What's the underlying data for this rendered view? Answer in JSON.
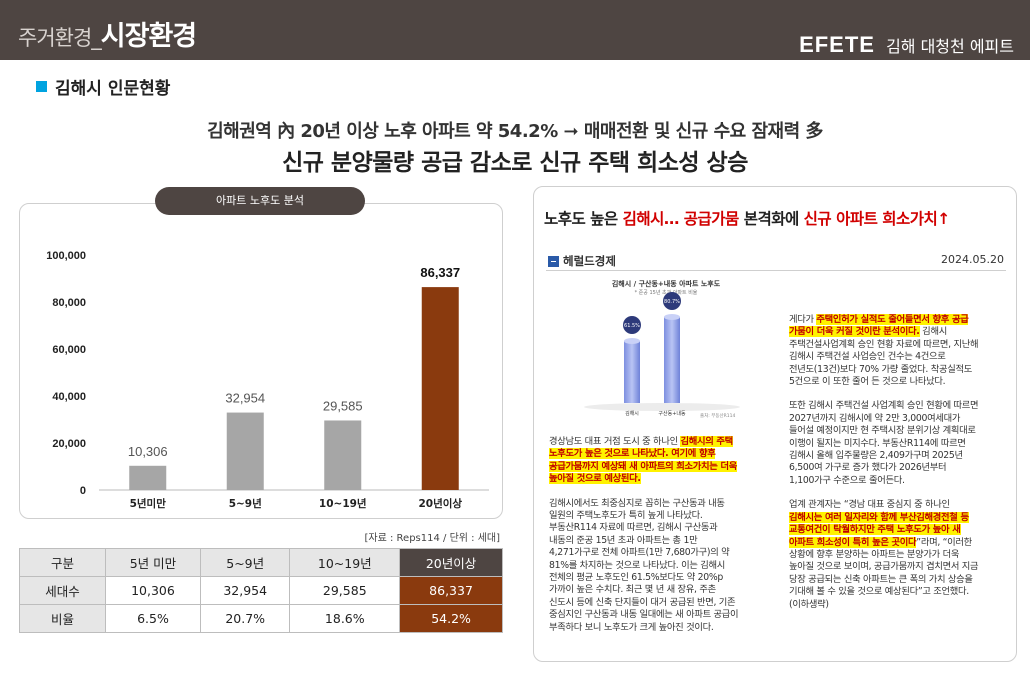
{
  "header": {
    "category_small": "주거환경_",
    "category_big": "시장환경",
    "logo": "EFETE",
    "project": "김해 대청천 에피트"
  },
  "section": {
    "title": "김해시 인문현황"
  },
  "headline": {
    "line1": "김해권역 內 20년 이상 노후 아파트 약 54.2% ➞ 매매전환 및 신규 수요 잠재력 多",
    "line2": "신규 분양물량 공급 감소로 신규 주택 희소성 상승"
  },
  "chart_pill": "아파트 노후도 분석",
  "chart_data": {
    "type": "bar",
    "categories": [
      "5년미만",
      "5~9년",
      "10~19년",
      "20년이상"
    ],
    "values": [
      10306,
      32954,
      29585,
      86337
    ],
    "value_labels": [
      "10,306",
      "32,954",
      "29,585",
      "86,337"
    ],
    "y_ticks": [
      "0",
      "20,000",
      "40,000",
      "60,000",
      "80,000",
      "100,000"
    ],
    "ylim": [
      0,
      100000
    ],
    "colors": [
      "#a6a6a6",
      "#a6a6a6",
      "#a6a6a6",
      "#8a3a0e"
    ],
    "highlight_index": 3
  },
  "source_note": "[자료 : Reps114 / 단위 : 세대]",
  "table": {
    "header": [
      "구분",
      "5년 미만",
      "5~9년",
      "10~19년",
      "20년이상"
    ],
    "rows": [
      [
        "세대수",
        "10,306",
        "32,954",
        "29,585",
        "86,337"
      ],
      [
        "비율",
        "6.5%",
        "20.7%",
        "18.6%",
        "54.2%"
      ]
    ]
  },
  "news": {
    "headline_a": "노후도 높은 ",
    "headline_b": "김해시… 공급가뭄",
    "headline_c": " 본격화에 ",
    "headline_d": "신규 아파트 희소가치↑",
    "paper": "헤럴드경제",
    "date": "2024.05.20",
    "mini_chart": {
      "title": "김해시 / 구산동+내동 아파트 노후도",
      "subtitle": "* 준공 15년 초과 아파트 비율",
      "bars": [
        {
          "label": "김해시",
          "value_label": "61.5%"
        },
        {
          "label": "구산동+내동",
          "value_label": "80.7%"
        }
      ],
      "source": "출처: 부동산R114"
    },
    "left_paragraphs": [
      {
        "lines": [
          {
            "plain": "경상남도 대표 거점 도시 중 하나인 ",
            "hl": "김해시의 주택"
          },
          {
            "plain": "",
            "hl": "노후도가 높은 것으로 나타났다. 여기에 향후"
          },
          {
            "plain": "",
            "hl": "공급가뭄까지 예상돼 새 아파트의 희소가치는 더욱"
          },
          {
            "plain": "",
            "hl": "높아질 것으로 예상된다."
          }
        ]
      },
      {
        "lines": [
          {
            "plain": "김해시에서도 최중심지로 꼽히는 구산동과 내동",
            "hl": ""
          },
          {
            "plain": "일원의 주택노후도가 특히 높게 나타났다.",
            "hl": ""
          },
          {
            "plain": "부동산R114 자료에 따르면, 김해시 구산동과",
            "hl": ""
          },
          {
            "plain": "내동의 준공 15년 초과 아파트는 총 1만",
            "hl": ""
          },
          {
            "plain": "4,271가구로 전체 아파트(1만 7,680가구)의 약",
            "hl": ""
          },
          {
            "plain": "81%를 차지하는 것으로 나타났다. 이는 김해시",
            "hl": ""
          },
          {
            "plain": "전체의 평균 노후도인 61.5%보다도 약 20%p",
            "hl": ""
          },
          {
            "plain": "가까이 높은 수치다. 최근 몇 년 새 장유, 주촌",
            "hl": ""
          },
          {
            "plain": "신도시 등에 신축 단지들이 대거 공급된 반면, 기존",
            "hl": ""
          },
          {
            "plain": "중심지인 구산동과 내동 일대에는 새 아파트 공급이",
            "hl": ""
          },
          {
            "plain": "부족하다 보니 노후도가 크게 높아진 것이다.",
            "hl": ""
          }
        ]
      }
    ],
    "right_paragraphs": [
      {
        "lines": [
          {
            "plain": "게다가 ",
            "hl": "주택인허가 실적도 줄어들면서 향후 공급"
          },
          {
            "plain": "",
            "hl": "가뭄이 더욱 커질 것이란 분석이다.",
            "tail": " 김해시"
          },
          {
            "plain": "주택건설사업계획 승인 현황 자료에 따르면, 지난해",
            "hl": ""
          },
          {
            "plain": "김해시 주택건설 사업승인 건수는 4건으로",
            "hl": ""
          },
          {
            "plain": "전년도(13건)보다 70% 가량 줄었다. 착공실적도",
            "hl": ""
          },
          {
            "plain": "5건으로 이 또한 줄어 든 것으로 나타났다.",
            "hl": ""
          }
        ]
      },
      {
        "lines": [
          {
            "plain": "또한 김해시 주택건설 사업계획 승인 현황에 따르면",
            "hl": ""
          },
          {
            "plain": "2027년까지 김해시에 약 2만 3,000여세대가",
            "hl": ""
          },
          {
            "plain": "들어설 예정이지만 현 주택시장 분위기상 계획대로",
            "hl": ""
          },
          {
            "plain": "이행이 될지는 미지수다. 부동산R114에 따르면",
            "hl": ""
          },
          {
            "plain": "김해시 올해 입주물량은 2,409가구며 2025년",
            "hl": ""
          },
          {
            "plain": "6,500여 가구로 증가 했다가 2026년부터",
            "hl": ""
          },
          {
            "plain": "1,100가구 수준으로 줄어든다.",
            "hl": ""
          }
        ]
      },
      {
        "lines": [
          {
            "plain": "업계 관계자는 “경남 대표 중심지 중 하나인",
            "hl": ""
          },
          {
            "plain": "",
            "hl": "김해시는 여러 일자리와 함께 부산김해경전철 등"
          },
          {
            "plain": "",
            "hl": "교통여건이 탁월하지만 주택 노후도가 높아 새"
          },
          {
            "plain": "",
            "hl": "아파트 희소성이 특히 높은 곳이다",
            "tail": "”라며, “이러한"
          },
          {
            "plain": "상황에 향후 분양하는 아파트는 분양가가 더욱",
            "hl": ""
          },
          {
            "plain": "높아질 것으로 보이며, 공급가뭄까지 겹치면서 지금",
            "hl": ""
          },
          {
            "plain": "당장 공급되는 신축 아파트는 큰 폭의 가치 상승을",
            "hl": ""
          },
          {
            "plain": "기대해 볼 수 있을 것으로 예상된다”고 조언했다.",
            "hl": ""
          },
          {
            "plain": "(이하생략)",
            "hl": ""
          }
        ]
      }
    ]
  }
}
